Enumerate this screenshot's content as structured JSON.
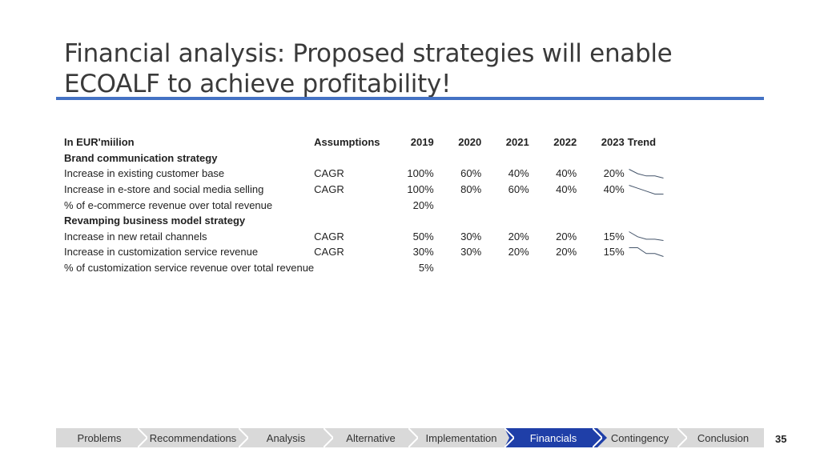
{
  "title": "Financial analysis: Proposed strategies will enable ECOALF to achieve profitability!",
  "table": {
    "header": {
      "label": "In EUR'miilion",
      "assumptions": "Assumptions",
      "years": [
        "2019",
        "2020",
        "2021",
        "2022",
        "2023"
      ],
      "trend": "Trend"
    },
    "sections": [
      {
        "title": "Brand communication strategy",
        "rows": [
          {
            "label": "Increase in existing customer base",
            "assumption": "CAGR",
            "values": [
              "100%",
              "60%",
              "40%",
              "40%",
              "20%"
            ],
            "trend": [
              100,
              60,
              40,
              40,
              20
            ]
          },
          {
            "label": "Increase in e-store and social media selling",
            "assumption": "CAGR",
            "values": [
              "100%",
              "80%",
              "60%",
              "40%",
              "40%"
            ],
            "trend": [
              100,
              80,
              60,
              40,
              40
            ]
          },
          {
            "label": "% of e-commerce revenue over total revenue",
            "assumption": "",
            "values": [
              "20%",
              "",
              "",
              "",
              ""
            ],
            "trend": null
          }
        ]
      },
      {
        "title": "Revamping business model strategy",
        "rows": [
          {
            "label": "Increase in new retail channels",
            "assumption": "CAGR",
            "values": [
              "50%",
              "30%",
              "20%",
              "20%",
              "15%"
            ],
            "trend": [
              50,
              30,
              20,
              20,
              15
            ]
          },
          {
            "label": "Increase in customization service revenue",
            "assumption": "CAGR",
            "values": [
              "30%",
              "30%",
              "20%",
              "20%",
              "15%"
            ],
            "trend": [
              30,
              30,
              20,
              20,
              15
            ]
          },
          {
            "label": "% of customization service revenue over total revenue",
            "assumption": "",
            "values": [
              "5%",
              "",
              "",
              "",
              ""
            ],
            "trend": null
          }
        ]
      }
    ]
  },
  "nav": {
    "items": [
      "Problems",
      "Recommendations",
      "Analysis",
      "Alternative",
      "Implementation",
      "Financials",
      "Contingency",
      "Conclusion"
    ],
    "active": "Financials"
  },
  "page_number": "35",
  "colors": {
    "accent": "#4472c4",
    "nav_bg": "#d9d9d9",
    "nav_active": "#1f3fa8",
    "sparkline": "#44546a"
  }
}
